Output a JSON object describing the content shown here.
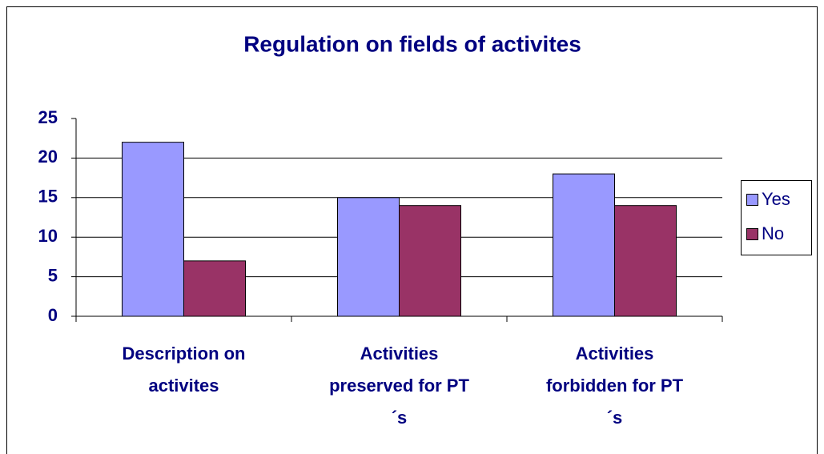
{
  "chart_data": {
    "type": "bar",
    "title": "Regulation on fields of activites",
    "categories": [
      "Description on activites",
      "Activities preserved for PT´s",
      "Activities forbidden for PT´s"
    ],
    "series": [
      {
        "name": "Yes",
        "color": "#9999ff",
        "values": [
          22,
          15,
          18
        ]
      },
      {
        "name": "No",
        "color": "#993366",
        "values": [
          7,
          14,
          14
        ]
      }
    ],
    "ylim": [
      0,
      25
    ],
    "yticks": [
      0,
      5,
      10,
      15,
      20,
      25
    ],
    "grid": true,
    "legend": "right"
  }
}
